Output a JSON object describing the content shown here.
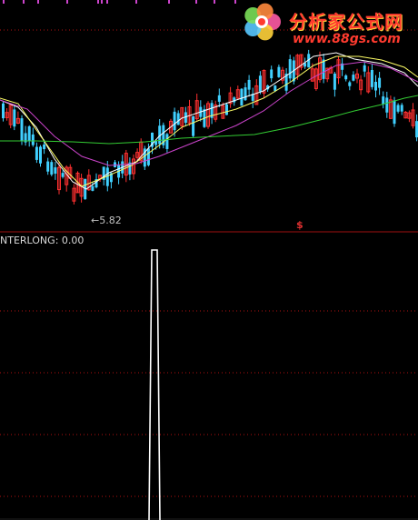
{
  "main_chart": {
    "min_price_label": "5.82",
    "signal_marker": "$",
    "ma_colors": {
      "ma_short": "#ffffff",
      "ma_mid": "#ffff66",
      "ma_long": "#cc44cc",
      "ma_slow": "#33cc33"
    },
    "candle_colors": {
      "up": "#ff3030",
      "down": "#40d0ff"
    }
  },
  "sub_chart": {
    "label": "NTERLONG: 0.00",
    "line_color": "#ffffff",
    "grid_color": "#b01010"
  },
  "watermark": {
    "title": "分析家公式网",
    "url": "www.88gs.com"
  },
  "chart_data": {
    "type": "line",
    "series": [
      {
        "name": "NTERLONG",
        "values": [
          0,
          0,
          0,
          0,
          0,
          0,
          0,
          0,
          0,
          0,
          0,
          0,
          0,
          0,
          0,
          0,
          0,
          0,
          0,
          0,
          0,
          1,
          1,
          1,
          0,
          0,
          0,
          0,
          0,
          0,
          0,
          0,
          0,
          0,
          0,
          0,
          0,
          0,
          0,
          0,
          0,
          0,
          0,
          0,
          0,
          0,
          0,
          0,
          0,
          0,
          0,
          0,
          0,
          0,
          0,
          0,
          0,
          0,
          0,
          0
        ]
      }
    ]
  }
}
